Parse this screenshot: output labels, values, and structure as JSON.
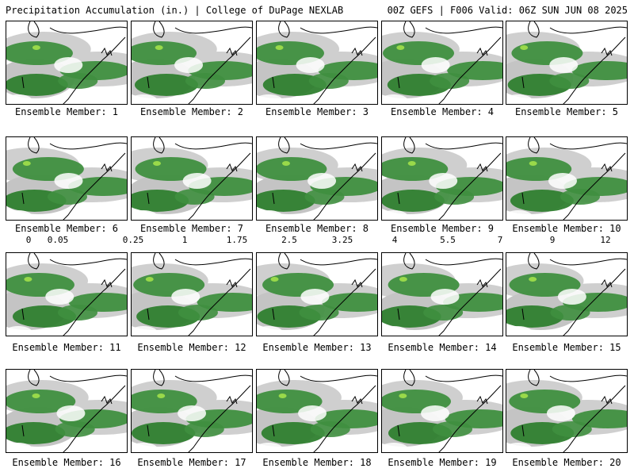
{
  "header": {
    "left_title": "Precipitation Accumulation (in.) | College of DuPage NEXLAB",
    "right_title": "00Z GEFS | F006 Valid: 06Z SUN JUN 08 2025"
  },
  "members": [
    {
      "label": "Ensemble Member: 1"
    },
    {
      "label": "Ensemble Member: 2"
    },
    {
      "label": "Ensemble Member: 3"
    },
    {
      "label": "Ensemble Member: 4"
    },
    {
      "label": "Ensemble Member: 5"
    },
    {
      "label": "Ensemble Member: 6"
    },
    {
      "label": "Ensemble Member: 7"
    },
    {
      "label": "Ensemble Member: 8"
    },
    {
      "label": "Ensemble Member: 9"
    },
    {
      "label": "Ensemble Member: 10"
    },
    {
      "label": "Ensemble Member: 11"
    },
    {
      "label": "Ensemble Member: 12"
    },
    {
      "label": "Ensemble Member: 13"
    },
    {
      "label": "Ensemble Member: 14"
    },
    {
      "label": "Ensemble Member: 15"
    },
    {
      "label": "Ensemble Member: 16"
    },
    {
      "label": "Ensemble Member: 17"
    },
    {
      "label": "Ensemble Member: 18"
    },
    {
      "label": "Ensemble Member: 19"
    },
    {
      "label": "Ensemble Member: 20"
    }
  ],
  "colorbar": {
    "labels": [
      "0",
      "0.05",
      "0.25",
      "1",
      "1.75",
      "2.5",
      "3.25",
      "4",
      "5.5",
      "7",
      "9",
      "12"
    ],
    "colors": [
      "#d8d8d8",
      "#bfbfbf",
      "#a0a0a0",
      "#8a8a8a",
      "#3f8f3f",
      "#2f7f2f",
      "#3aa03a",
      "#66c04a",
      "#99d94a",
      "#ffff33",
      "#ffd700",
      "#ffa500",
      "#ff7f00",
      "#ff4500",
      "#ff0000",
      "#dd0000",
      "#aa0000",
      "#880000",
      "#990033",
      "#cc0066",
      "#ff00cc",
      "#ff66ff",
      "#cc66ff",
      "#9966ff",
      "#6699ff",
      "#33ccff",
      "#00ffff",
      "#33ddcc",
      "#33bbaa",
      "#999999",
      "#777777",
      "#aaaaaa"
    ]
  }
}
